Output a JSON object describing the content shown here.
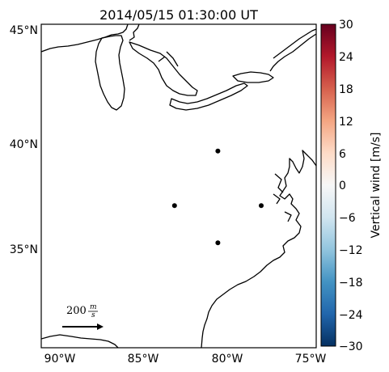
{
  "title": "2014/05/15 01:30:00 UT",
  "lat_ticks": [
    "45°N",
    "40°N",
    "35°N"
  ],
  "lon_ticks": [
    "90°W",
    "85°W",
    "80°W",
    "75°W"
  ],
  "colorbar": {
    "label": "Vertical wind [m/s]",
    "min": -30,
    "max": 30,
    "ticks": [
      "30",
      "24",
      "18",
      "12",
      "6",
      "0",
      "−6",
      "−12",
      "−18",
      "−24",
      "−30"
    ],
    "colormap": "RdBu_r",
    "colors": [
      "#053061",
      "#2166ac",
      "#4393c3",
      "#92c5de",
      "#d1e5f0",
      "#f7f7f7",
      "#fddbc7",
      "#f4a582",
      "#d6604d",
      "#b2182b",
      "#67001f"
    ]
  },
  "reference_vector": {
    "label": "200",
    "unit_numerator": "m",
    "unit_denominator": "s"
  },
  "stations": [
    {
      "lon": -80.4,
      "lat": 39.5
    },
    {
      "lon": -83.0,
      "lat": 37.0
    },
    {
      "lon": -77.8,
      "lat": 37.0
    },
    {
      "lon": -80.4,
      "lat": 35.3
    }
  ],
  "map_extent": {
    "lon_min": -91.0,
    "lon_max": -74.5,
    "lat_min": 30.5,
    "lat_max": 45.3
  }
}
